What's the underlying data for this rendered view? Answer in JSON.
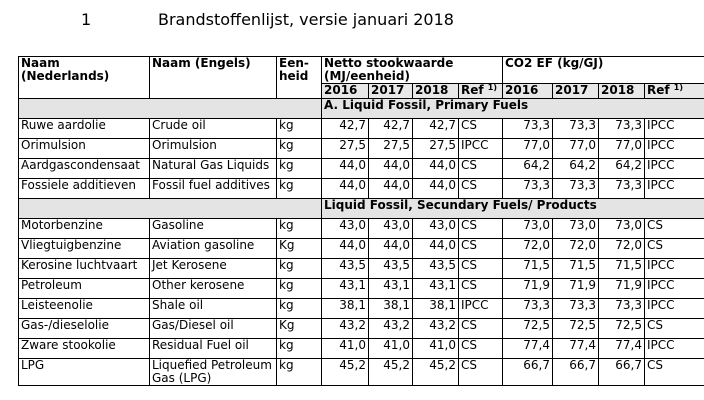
{
  "page": {
    "number": "1",
    "title": "Brandstoffenlijst, versie januari 2018"
  },
  "headers": {
    "naam_nl": "Naam (Nederlands)",
    "naam_en": "Naam (Engels)",
    "eenheid": "Een-heid",
    "netto": "Netto stookwaarde (MJ/eenheid)",
    "co2": "CO2 EF (kg/GJ)",
    "years": [
      "2016",
      "2017",
      "2018"
    ],
    "ref": "Ref",
    "ref_sup": "1)"
  },
  "sections": [
    {
      "title": "A. Liquid Fossil, Primary Fuels",
      "rows": [
        {
          "nl": "Ruwe aardolie",
          "en": "Crude oil",
          "unit": "kg",
          "nv": [
            "42,7",
            "42,7",
            "42,7"
          ],
          "nv_ref": "CS",
          "ef": [
            "73,3",
            "73,3",
            "73,3"
          ],
          "ef_ref": "IPCC"
        },
        {
          "nl": "Orimulsion",
          "en": "Orimulsion",
          "unit": "kg",
          "nv": [
            "27,5",
            "27,5",
            "27,5"
          ],
          "nv_ref": "IPCC",
          "ef": [
            "77,0",
            "77,0",
            "77,0"
          ],
          "ef_ref": "IPCC"
        },
        {
          "nl": "Aardgascondensaat",
          "en": "Natural Gas Liquids",
          "unit": "kg",
          "nv": [
            "44,0",
            "44,0",
            "44,0"
          ],
          "nv_ref": "CS",
          "ef": [
            "64,2",
            "64,2",
            "64,2"
          ],
          "ef_ref": "IPCC"
        },
        {
          "nl": "Fossiele additieven",
          "en": "Fossil fuel additives",
          "unit": "kg",
          "nv": [
            "44,0",
            "44,0",
            "44,0"
          ],
          "nv_ref": "CS",
          "ef": [
            "73,3",
            "73,3",
            "73,3"
          ],
          "ef_ref": "IPCC"
        }
      ]
    },
    {
      "title": "Liquid Fossil, Secundary Fuels/ Products",
      "rows": [
        {
          "nl": "Motorbenzine",
          "en": "Gasoline",
          "unit": "kg",
          "nv": [
            "43,0",
            "43,0",
            "43,0"
          ],
          "nv_ref": "CS",
          "ef": [
            "73,0",
            "73,0",
            "73,0"
          ],
          "ef_ref": "CS"
        },
        {
          "nl": "Vliegtuigbenzine",
          "en": "Aviation gasoline",
          "unit": "Kg",
          "nv": [
            "44,0",
            "44,0",
            "44,0"
          ],
          "nv_ref": "CS",
          "ef": [
            "72,0",
            "72,0",
            "72,0"
          ],
          "ef_ref": "CS"
        },
        {
          "nl": "Kerosine luchtvaart",
          "en": "Jet Kerosene",
          "unit": "kg",
          "nv": [
            "43,5",
            "43,5",
            "43,5"
          ],
          "nv_ref": "CS",
          "ef": [
            "71,5",
            "71,5",
            "71,5"
          ],
          "ef_ref": "IPCC"
        },
        {
          "nl": "Petroleum",
          "en": "Other kerosene",
          "unit": "kg",
          "nv": [
            "43,1",
            "43,1",
            "43,1"
          ],
          "nv_ref": "CS",
          "ef": [
            "71,9",
            "71,9",
            "71,9"
          ],
          "ef_ref": "IPCC"
        },
        {
          "nl": "Leisteenolie",
          "en": "Shale oil",
          "unit": "kg",
          "nv": [
            "38,1",
            "38,1",
            "38,1"
          ],
          "nv_ref": "IPCC",
          "ef": [
            "73,3",
            "73,3",
            "73,3"
          ],
          "ef_ref": "IPCC"
        },
        {
          "nl": "Gas-/dieselolie",
          "en": "Gas/Diesel oil",
          "unit": "Kg",
          "nv": [
            "43,2",
            "43,2",
            "43,2"
          ],
          "nv_ref": "CS",
          "ef": [
            "72,5",
            "72,5",
            "72,5"
          ],
          "ef_ref": "CS"
        },
        {
          "nl": "Zware stookolie",
          "en": "Residual Fuel oil",
          "unit": "kg",
          "nv": [
            "41,0",
            "41,0",
            "41,0"
          ],
          "nv_ref": "CS",
          "ef": [
            "77,4",
            "77,4",
            "77,4"
          ],
          "ef_ref": "IPCC"
        },
        {
          "nl": "LPG",
          "en": "Liquefied Petroleum Gas (LPG)",
          "unit": "kg",
          "nv": [
            "45,2",
            "45,2",
            "45,2"
          ],
          "nv_ref": "CS",
          "ef": [
            "66,7",
            "66,7",
            "66,7"
          ],
          "ef_ref": "CS",
          "tall": true
        }
      ]
    }
  ]
}
